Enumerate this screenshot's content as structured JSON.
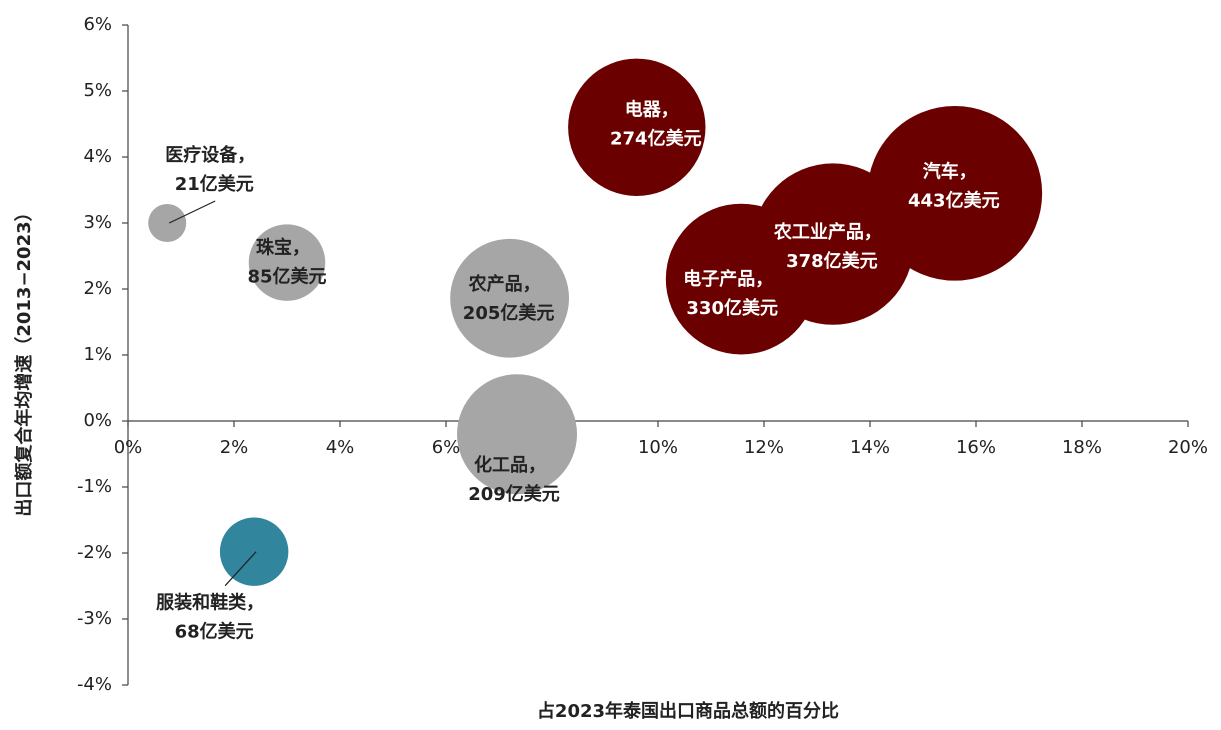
{
  "chart_data": {
    "type": "bubble",
    "x_label": "占2023年泰国出口商品总额的百分比",
    "y_label": "出口额复合年均增速（2013−2023）",
    "xlim": [
      0,
      20
    ],
    "xticks": [
      {
        "value": 0,
        "label": "0%"
      },
      {
        "value": 2,
        "label": "2%"
      },
      {
        "value": 4,
        "label": "4%"
      },
      {
        "value": 6,
        "label": "6%"
      },
      {
        "value": 8,
        "label": "8%"
      },
      {
        "value": 10,
        "label": "10%"
      },
      {
        "value": 12,
        "label": "12%"
      },
      {
        "value": 14,
        "label": "14%"
      },
      {
        "value": 16,
        "label": "16%"
      },
      {
        "value": 18,
        "label": "18%"
      },
      {
        "value": 20,
        "label": "20%"
      }
    ],
    "ylim": [
      -4,
      6
    ],
    "yticks": [
      {
        "value": -4,
        "label": "-4%"
      },
      {
        "value": -3,
        "label": "-3%"
      },
      {
        "value": -2,
        "label": "-2%"
      },
      {
        "value": -1,
        "label": "-1%"
      },
      {
        "value": 0,
        "label": "0%"
      },
      {
        "value": 1,
        "label": "1%"
      },
      {
        "value": 2,
        "label": "2%"
      },
      {
        "value": 3,
        "label": "3%"
      },
      {
        "value": 4,
        "label": "4%"
      },
      {
        "value": 5,
        "label": "5%"
      },
      {
        "value": 6,
        "label": "6%"
      }
    ],
    "points": [
      {
        "label": "医疗设备，",
        "value_label": "21亿美元",
        "x": 0.74,
        "y": 3.0,
        "size": 21,
        "color": "#a6a6a6"
      },
      {
        "label": "珠宝，",
        "value_label": "85亿美元",
        "x": 3.0,
        "y": 2.4,
        "size": 85,
        "color": "#a6a6a6"
      },
      {
        "label": "农产品，",
        "value_label": "205亿美元",
        "x": 7.2,
        "y": 1.86,
        "size": 205,
        "color": "#a6a6a6"
      },
      {
        "label": "化工品，",
        "value_label": "209亿美元",
        "x": 7.34,
        "y": -0.2,
        "size": 209,
        "color": "#a6a6a6"
      },
      {
        "label": "服装和鞋类，",
        "value_label": "68亿美元",
        "x": 2.38,
        "y": -1.98,
        "size": 68,
        "color": "#31859c"
      },
      {
        "label": "电器，",
        "value_label": "274亿美元",
        "x": 9.6,
        "y": 4.45,
        "size": 274,
        "color": "#6b0000"
      },
      {
        "label": "电子产品，",
        "value_label": "330亿美元",
        "x": 11.57,
        "y": 2.15,
        "size": 330,
        "color": "#6b0000"
      },
      {
        "label": "农工业产品，",
        "value_label": "378亿美元",
        "x": 13.3,
        "y": 2.68,
        "size": 378,
        "color": "#6b0000"
      },
      {
        "label": "汽车，",
        "value_label": "443亿美元",
        "x": 15.6,
        "y": 3.45,
        "size": 443,
        "color": "#6b0000"
      }
    ]
  }
}
